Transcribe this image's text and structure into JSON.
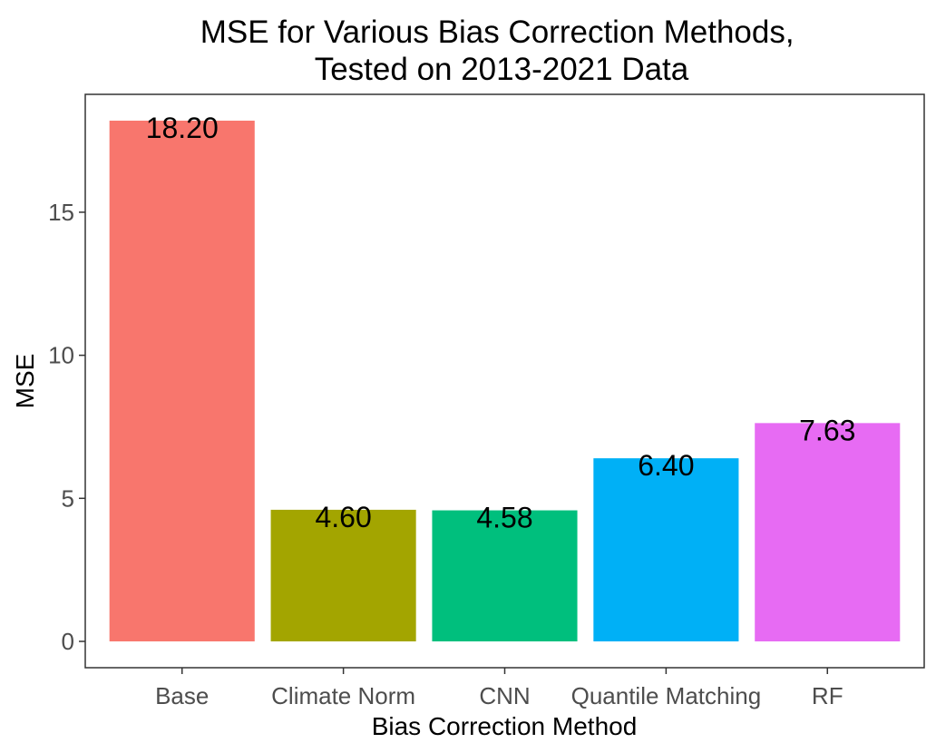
{
  "chart_data": {
    "type": "bar",
    "title": [
      "MSE for Various Bias Correction Methods,",
      "Tested on 2013-2021 Data"
    ],
    "xlabel": "Bias Correction Method",
    "ylabel": "MSE",
    "categories": [
      "Base",
      "Climate Norm",
      "CNN",
      "Quantile Matching",
      "RF"
    ],
    "values": [
      18.2,
      4.6,
      4.58,
      6.4,
      7.63
    ],
    "data_labels": [
      "18.20",
      "4.60",
      "4.58",
      "6.40",
      "7.63"
    ],
    "colors": [
      "#F8766D",
      "#A3A500",
      "#00BF7D",
      "#00B0F6",
      "#E76BF3"
    ],
    "yticks": [
      0,
      5,
      10,
      15
    ],
    "ylim": [
      -0.92,
      19.12
    ],
    "grid": false,
    "legend": "none"
  }
}
